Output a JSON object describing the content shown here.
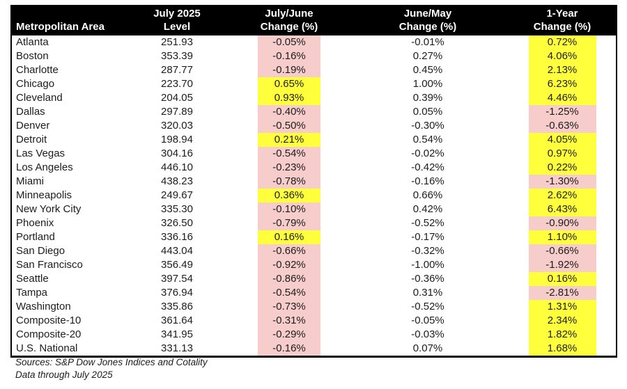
{
  "colors": {
    "header_bg": "#000000",
    "header_text": "#ffffff",
    "highlight_positive_yellow": "#ffff3c",
    "highlight_negative_pink": "#f6cdcb",
    "body_text": "#1c1c1c"
  },
  "footer": {
    "sources_line": "Sources: S&P Dow Jones Indices and Cotality",
    "data_through_line": "Data through July 2025"
  },
  "chart_data": {
    "type": "table",
    "title": "",
    "header": {
      "area": "Metropolitan Area",
      "level_line1": "July 2025",
      "level_line2": "Level",
      "jul_jun_line1": "July/June",
      "jul_jun_line2": "Change (%)",
      "jun_may_line1": "June/May",
      "jun_may_line2": "Change (%)",
      "one_year_line1": "1-Year",
      "one_year_line2": "Change (%)"
    },
    "columns": [
      "Metropolitan Area",
      "July 2025 Level",
      "July/June Change (%)",
      "June/May Change (%)",
      "1-Year Change (%)"
    ],
    "highlight_legend": {
      "yellow": "positive change",
      "pink": "negative change"
    },
    "rows": [
      {
        "area": "Atlanta",
        "level": "251.93",
        "jul_jun_change": "-0.05%",
        "jul_jun_highlight": "pink",
        "jun_may_change": "-0.01%",
        "one_year_change": "0.72%",
        "one_year_highlight": "yellow"
      },
      {
        "area": "Boston",
        "level": "353.39",
        "jul_jun_change": "-0.16%",
        "jul_jun_highlight": "pink",
        "jun_may_change": "0.27%",
        "one_year_change": "4.06%",
        "one_year_highlight": "yellow"
      },
      {
        "area": "Charlotte",
        "level": "287.77",
        "jul_jun_change": "-0.19%",
        "jul_jun_highlight": "pink",
        "jun_may_change": "0.45%",
        "one_year_change": "2.13%",
        "one_year_highlight": "yellow"
      },
      {
        "area": "Chicago",
        "level": "223.70",
        "jul_jun_change": "0.65%",
        "jul_jun_highlight": "yellow",
        "jun_may_change": "1.00%",
        "one_year_change": "6.23%",
        "one_year_highlight": "yellow"
      },
      {
        "area": "Cleveland",
        "level": "204.05",
        "jul_jun_change": "0.93%",
        "jul_jun_highlight": "yellow",
        "jun_may_change": "0.39%",
        "one_year_change": "4.46%",
        "one_year_highlight": "yellow"
      },
      {
        "area": "Dallas",
        "level": "297.89",
        "jul_jun_change": "-0.40%",
        "jul_jun_highlight": "pink",
        "jun_may_change": "0.05%",
        "one_year_change": "-1.25%",
        "one_year_highlight": "pink"
      },
      {
        "area": "Denver",
        "level": "320.03",
        "jul_jun_change": "-0.50%",
        "jul_jun_highlight": "pink",
        "jun_may_change": "-0.30%",
        "one_year_change": "-0.63%",
        "one_year_highlight": "pink"
      },
      {
        "area": "Detroit",
        "level": "198.94",
        "jul_jun_change": "0.21%",
        "jul_jun_highlight": "yellow",
        "jun_may_change": "0.54%",
        "one_year_change": "4.05%",
        "one_year_highlight": "yellow"
      },
      {
        "area": "Las Vegas",
        "level": "304.16",
        "jul_jun_change": "-0.54%",
        "jul_jun_highlight": "pink",
        "jun_may_change": "-0.02%",
        "one_year_change": "0.97%",
        "one_year_highlight": "yellow"
      },
      {
        "area": "Los Angeles",
        "level": "446.10",
        "jul_jun_change": "-0.23%",
        "jul_jun_highlight": "pink",
        "jun_may_change": "-0.42%",
        "one_year_change": "0.22%",
        "one_year_highlight": "yellow"
      },
      {
        "area": "Miami",
        "level": "438.23",
        "jul_jun_change": "-0.78%",
        "jul_jun_highlight": "pink",
        "jun_may_change": "-0.16%",
        "one_year_change": "-1.30%",
        "one_year_highlight": "pink"
      },
      {
        "area": "Minneapolis",
        "level": "249.67",
        "jul_jun_change": "0.36%",
        "jul_jun_highlight": "yellow",
        "jun_may_change": "0.66%",
        "one_year_change": "2.62%",
        "one_year_highlight": "yellow"
      },
      {
        "area": "New York City",
        "level": "335.30",
        "jul_jun_change": "-0.10%",
        "jul_jun_highlight": "pink",
        "jun_may_change": "0.42%",
        "one_year_change": "6.43%",
        "one_year_highlight": "yellow"
      },
      {
        "area": "Phoenix",
        "level": "326.50",
        "jul_jun_change": "-0.79%",
        "jul_jun_highlight": "pink",
        "jun_may_change": "-0.52%",
        "one_year_change": "-0.90%",
        "one_year_highlight": "pink"
      },
      {
        "area": "Portland",
        "level": "336.16",
        "jul_jun_change": "0.16%",
        "jul_jun_highlight": "yellow",
        "jun_may_change": "-0.17%",
        "one_year_change": "1.10%",
        "one_year_highlight": "yellow"
      },
      {
        "area": "San Diego",
        "level": "443.04",
        "jul_jun_change": "-0.66%",
        "jul_jun_highlight": "pink",
        "jun_may_change": "-0.32%",
        "one_year_change": "-0.66%",
        "one_year_highlight": "pink"
      },
      {
        "area": "San Francisco",
        "level": "356.49",
        "jul_jun_change": "-0.92%",
        "jul_jun_highlight": "pink",
        "jun_may_change": "-1.00%",
        "one_year_change": "-1.92%",
        "one_year_highlight": "pink"
      },
      {
        "area": "Seattle",
        "level": "397.54",
        "jul_jun_change": "-0.86%",
        "jul_jun_highlight": "pink",
        "jun_may_change": "-0.36%",
        "one_year_change": "0.16%",
        "one_year_highlight": "yellow"
      },
      {
        "area": "Tampa",
        "level": "376.94",
        "jul_jun_change": "-0.54%",
        "jul_jun_highlight": "pink",
        "jun_may_change": "0.31%",
        "one_year_change": "-2.81%",
        "one_year_highlight": "pink"
      },
      {
        "area": "Washington",
        "level": "335.86",
        "jul_jun_change": "-0.73%",
        "jul_jun_highlight": "pink",
        "jun_may_change": "-0.52%",
        "one_year_change": "1.31%",
        "one_year_highlight": "yellow"
      },
      {
        "area": "Composite-10",
        "level": "361.64",
        "jul_jun_change": "-0.31%",
        "jul_jun_highlight": "pink",
        "jun_may_change": "-0.05%",
        "one_year_change": "2.34%",
        "one_year_highlight": "yellow"
      },
      {
        "area": "Composite-20",
        "level": "341.95",
        "jul_jun_change": "-0.29%",
        "jul_jun_highlight": "pink",
        "jun_may_change": "-0.03%",
        "one_year_change": "1.82%",
        "one_year_highlight": "yellow"
      },
      {
        "area": "U.S. National",
        "level": "331.13",
        "jul_jun_change": "-0.16%",
        "jul_jun_highlight": "pink",
        "jun_may_change": "0.07%",
        "one_year_change": "1.68%",
        "one_year_highlight": "yellow"
      }
    ]
  }
}
